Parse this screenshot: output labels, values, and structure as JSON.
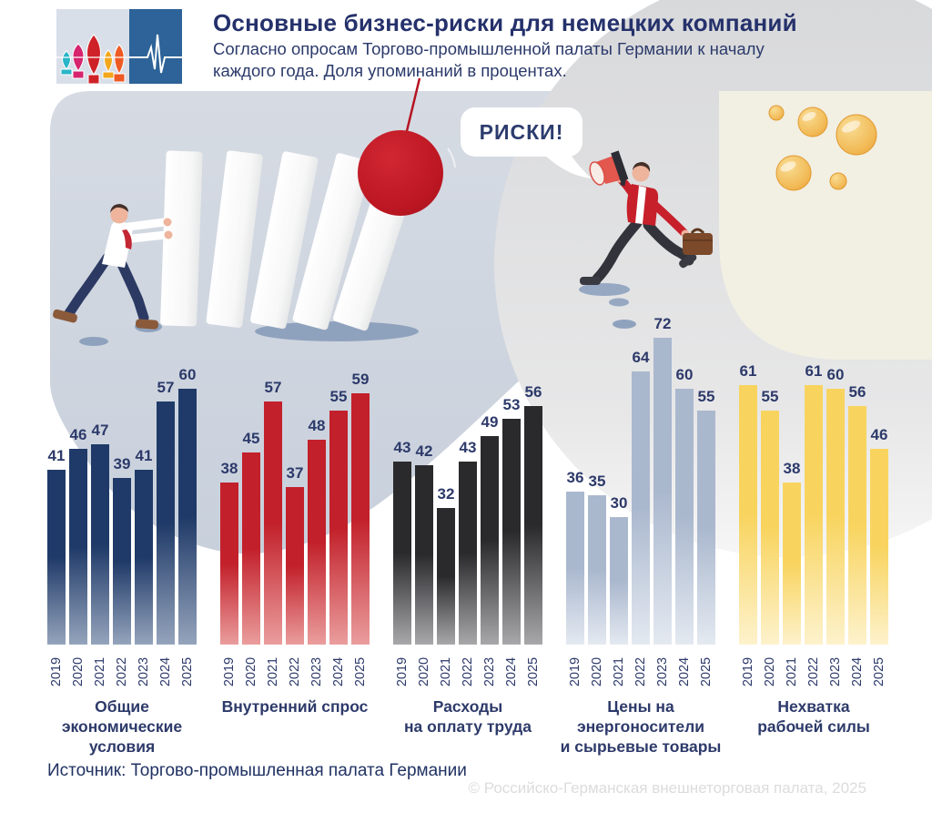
{
  "header": {
    "title": "Основные бизнес-риски для немецких компаний",
    "subtitle": "Согласно опросам Торгово-промышленной палаты Германии к началу\nкаждого года. Доля упоминаний в процентах.",
    "logo_icons": [
      "st-basils-cathedral-icon",
      "heartbeat-pulse-icon"
    ]
  },
  "illustration": {
    "speech_bubble": "РИСКИ!",
    "scenes": [
      "man-pushing-falling-dominoes",
      "red-wrecking-ball",
      "businessman-running-with-megaphone-and-briefcase",
      "golden-bubbles"
    ]
  },
  "chart_data": {
    "type": "bar",
    "unit": "% упоминаний",
    "categories": [
      "2019",
      "2020",
      "2021",
      "2022",
      "2023",
      "2024",
      "2025"
    ],
    "value_label_color": "#2d3a6a",
    "grid": false,
    "axis_lines": false,
    "series": [
      {
        "name": "Общие экономические условия",
        "display_label": "Общие\nэкономические\nусловия",
        "values": [
          41,
          46,
          47,
          39,
          41,
          57,
          60
        ],
        "color_top": "#1f3a68",
        "color_bottom": "#95a4bc"
      },
      {
        "name": "Внутренний спрос",
        "display_label": "Внутренний спрос",
        "values": [
          38,
          45,
          57,
          37,
          48,
          55,
          59
        ],
        "color_top": "#c2202a",
        "color_bottom": "#ea9d9d"
      },
      {
        "name": "Расходы на оплату труда",
        "display_label": "Расходы\nна оплату труда",
        "values": [
          43,
          42,
          32,
          43,
          49,
          53,
          56
        ],
        "color_top": "#2a2a2d",
        "color_bottom": "#a8a8aa"
      },
      {
        "name": "Цены на энергоносители и сырьевые товары",
        "display_label": "Цены на\nэнергоносители\nи сырьевые товары",
        "values": [
          36,
          35,
          30,
          64,
          72,
          60,
          55
        ],
        "color_top": "#aab8ce",
        "color_bottom": "#e4e9f1"
      },
      {
        "name": "Нехватка рабочей силы",
        "display_label": "Нехватка\nрабочей силы",
        "values": [
          61,
          55,
          38,
          61,
          60,
          56,
          46
        ],
        "color_top": "#f8d45f",
        "color_bottom": "#fdf2cc"
      }
    ]
  },
  "footer": {
    "source": "Источник: Торгово-промышленная палата Германии",
    "copyright": "© Российско-Германская внешнеторговая палата, 2025"
  }
}
